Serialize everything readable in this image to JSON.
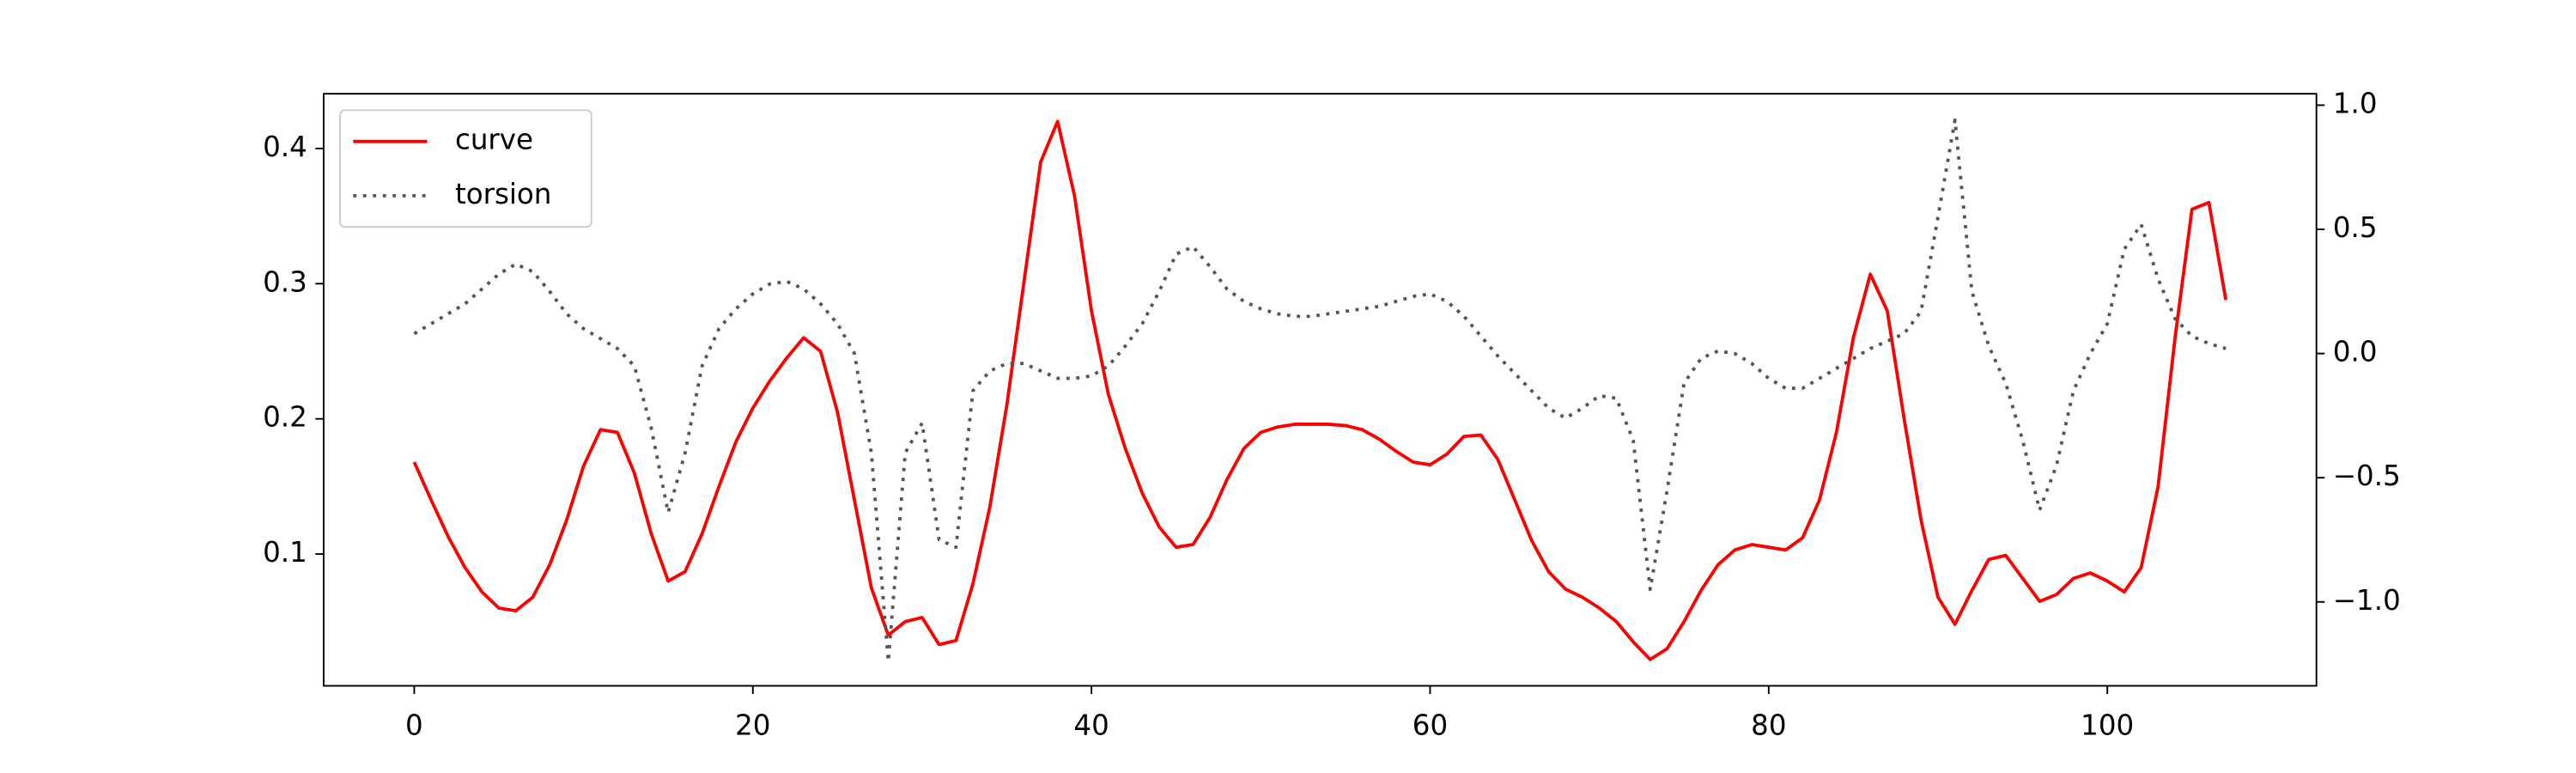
{
  "chart_data": {
    "type": "line",
    "x": [
      0,
      1,
      2,
      3,
      4,
      5,
      6,
      7,
      8,
      9,
      10,
      11,
      12,
      13,
      14,
      15,
      16,
      17,
      18,
      19,
      20,
      21,
      22,
      23,
      24,
      25,
      26,
      27,
      28,
      29,
      30,
      31,
      32,
      33,
      34,
      35,
      36,
      37,
      38,
      39,
      40,
      41,
      42,
      43,
      44,
      45,
      46,
      47,
      48,
      49,
      50,
      51,
      52,
      53,
      54,
      55,
      56,
      57,
      58,
      59,
      60,
      61,
      62,
      63,
      64,
      65,
      66,
      67,
      68,
      69,
      70,
      71,
      72,
      73,
      74,
      75,
      76,
      77,
      78,
      79,
      80,
      81,
      82,
      83,
      84,
      85,
      86,
      87,
      88,
      89,
      90,
      91,
      92,
      93,
      94,
      95,
      96,
      97,
      98,
      99,
      100,
      101,
      102,
      103,
      104,
      105,
      106,
      107
    ],
    "series": [
      {
        "name": "curve",
        "color": "#ff0000",
        "linestyle": "solid",
        "values": [
          0.168,
          0.14,
          0.113,
          0.09,
          0.072,
          0.06,
          0.058,
          0.068,
          0.092,
          0.125,
          0.165,
          0.192,
          0.19,
          0.16,
          0.115,
          0.08,
          0.087,
          0.115,
          0.15,
          0.183,
          0.208,
          0.228,
          0.245,
          0.26,
          0.25,
          0.205,
          0.14,
          0.075,
          0.04,
          0.05,
          0.053,
          0.033,
          0.036,
          0.078,
          0.135,
          0.21,
          0.3,
          0.39,
          0.42,
          0.365,
          0.28,
          0.218,
          0.178,
          0.145,
          0.12,
          0.105,
          0.107,
          0.127,
          0.155,
          0.178,
          0.19,
          0.194,
          0.196,
          0.196,
          0.196,
          0.195,
          0.192,
          0.185,
          0.176,
          0.168,
          0.166,
          0.174,
          0.187,
          0.188,
          0.17,
          0.14,
          0.11,
          0.087,
          0.074,
          0.068,
          0.06,
          0.05,
          0.035,
          0.022,
          0.03,
          0.05,
          0.073,
          0.092,
          0.103,
          0.107,
          0.105,
          0.103,
          0.112,
          0.14,
          0.19,
          0.26,
          0.307,
          0.28,
          0.2,
          0.125,
          0.068,
          0.048,
          0.073,
          0.096,
          0.099,
          0.082,
          0.065,
          0.07,
          0.082,
          0.086,
          0.08,
          0.072,
          0.09,
          0.15,
          0.26,
          0.355,
          0.36,
          0.288
        ]
      },
      {
        "name": "torsion",
        "color": "#555555",
        "linestyle": "dotted",
        "axis": "y2",
        "values": [
          0.08,
          0.12,
          0.16,
          0.2,
          0.26,
          0.32,
          0.36,
          0.33,
          0.25,
          0.16,
          0.1,
          0.06,
          0.02,
          -0.05,
          -0.3,
          -0.64,
          -0.4,
          -0.05,
          0.1,
          0.18,
          0.24,
          0.28,
          0.29,
          0.26,
          0.2,
          0.12,
          0.0,
          -0.4,
          -1.24,
          -0.4,
          -0.28,
          -0.75,
          -0.78,
          -0.15,
          -0.07,
          -0.04,
          -0.04,
          -0.07,
          -0.1,
          -0.1,
          -0.09,
          -0.05,
          0.03,
          0.12,
          0.25,
          0.4,
          0.43,
          0.35,
          0.26,
          0.21,
          0.18,
          0.16,
          0.15,
          0.15,
          0.16,
          0.17,
          0.18,
          0.19,
          0.21,
          0.23,
          0.24,
          0.21,
          0.15,
          0.07,
          -0.01,
          -0.08,
          -0.15,
          -0.22,
          -0.26,
          -0.22,
          -0.17,
          -0.18,
          -0.35,
          -0.95,
          -0.55,
          -0.12,
          -0.02,
          0.01,
          0.0,
          -0.04,
          -0.1,
          -0.14,
          -0.14,
          -0.1,
          -0.06,
          -0.02,
          0.02,
          0.05,
          0.08,
          0.17,
          0.55,
          0.94,
          0.25,
          0.03,
          -0.12,
          -0.35,
          -0.63,
          -0.45,
          -0.15,
          0.0,
          0.12,
          0.42,
          0.52,
          0.3,
          0.14,
          0.07,
          0.04,
          0.02
        ]
      }
    ],
    "xlim": [
      -5.35,
      112.35
    ],
    "xticks": [
      0,
      20,
      40,
      60,
      80,
      100
    ],
    "ylim": [
      0.0025,
      0.4405
    ],
    "yticks": [
      0.1,
      0.2,
      0.3,
      0.4
    ],
    "y2lim": [
      -1.338,
      1.046
    ],
    "y2ticks": [
      {
        "value": -1.0,
        "label": "−1.0"
      },
      {
        "value": -0.5,
        "label": "−0.5"
      },
      {
        "value": 0.0,
        "label": "0.0"
      },
      {
        "value": 0.5,
        "label": "0.5"
      },
      {
        "value": 1.0,
        "label": "1.0"
      }
    ],
    "legend": "upper left",
    "grid": false
  }
}
